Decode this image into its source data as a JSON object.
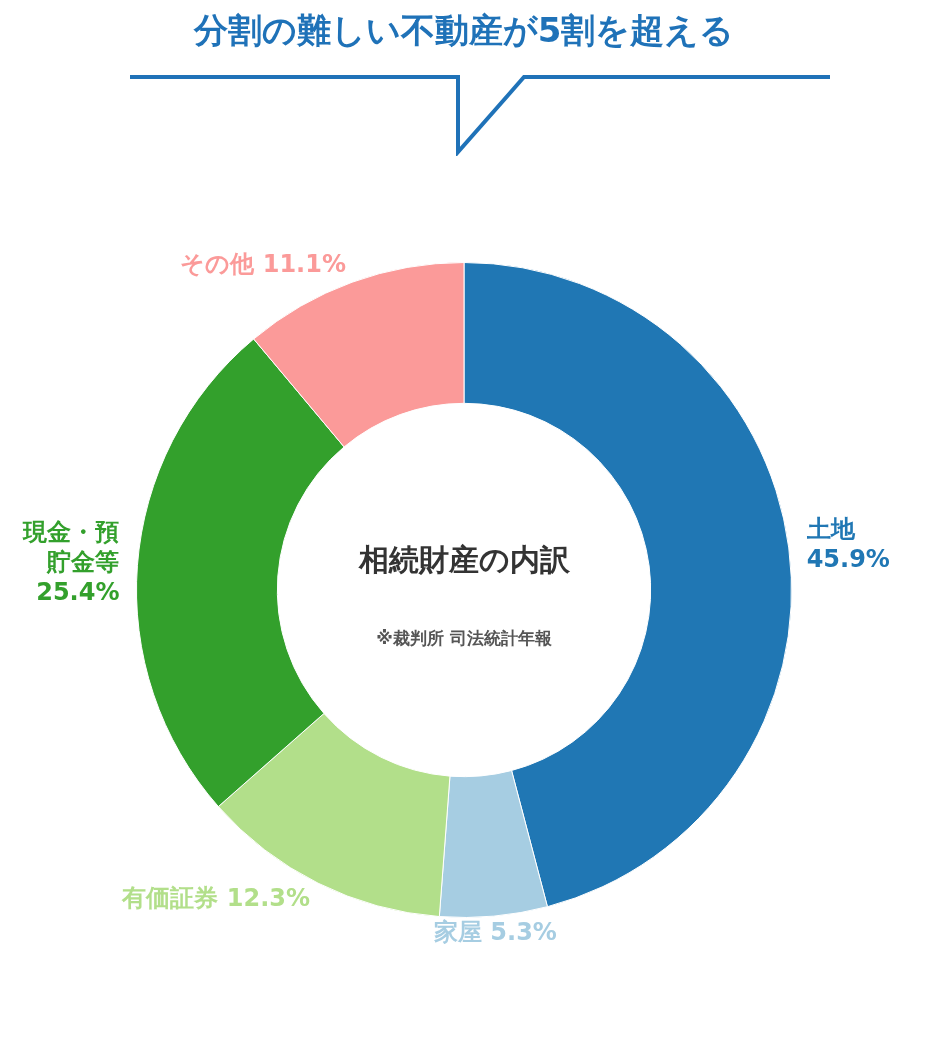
{
  "chart_data": {
    "type": "donut",
    "title": "分割の難しい不動産が5割を超える",
    "subtitle": "相続財産の内訳",
    "categories": [
      "土地",
      "家屋",
      "有価証券",
      "現金・預貯金等",
      "その他"
    ],
    "values": [
      45.9,
      5.3,
      12.3,
      25.4,
      11.1
    ],
    "value_labels": [
      "45.9%",
      "5.3%",
      "12.3%",
      "25.4%",
      "11.1%"
    ],
    "colors": [
      "#2077b4",
      "#a6cde2",
      "#b2df8a",
      "#33a02c",
      "#fb9a99"
    ],
    "annotations": [
      "※裁判所 司法統計年報"
    ]
  }
}
